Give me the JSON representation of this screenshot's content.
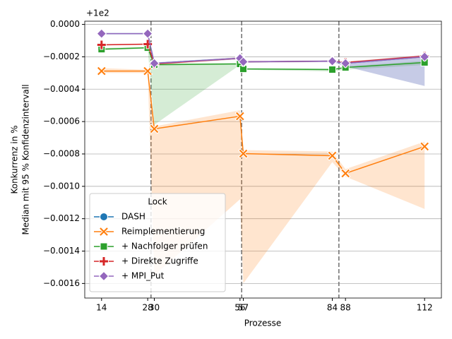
{
  "chart_data": {
    "type": "line",
    "xlabel": "Prozesse",
    "ylabel": [
      "Konkurrenz in %",
      "Median mit 95 % Konfidenzintervall"
    ],
    "y_offset_label": "+1e2",
    "x": [
      14,
      28,
      30,
      56,
      57,
      84,
      88,
      112
    ],
    "xlim": [
      8.9,
      117.1
    ],
    "xticks": [
      14,
      28,
      30,
      56,
      57,
      84,
      88,
      112
    ],
    "ylim": [
      -0.00169,
      2e-05
    ],
    "yticks": [
      {
        "value": 0,
        "label": "0.0000"
      },
      {
        "value": -0.0002,
        "label": "−0.0002"
      },
      {
        "value": -0.0004,
        "label": "−0.0004"
      },
      {
        "value": -0.0006,
        "label": "−0.0006"
      },
      {
        "value": -0.0008,
        "label": "−0.0008"
      },
      {
        "value": -0.001,
        "label": "−0.0010"
      },
      {
        "value": -0.0012,
        "label": "−0.0012"
      },
      {
        "value": -0.0014,
        "label": "−0.0014"
      },
      {
        "value": -0.0016,
        "label": "−0.0016"
      }
    ],
    "grid": "y",
    "vlines": [
      29,
      56.5,
      86
    ],
    "legend_title": "Lock",
    "legend_position": "lower left",
    "series": [
      {
        "name": "DASH",
        "color": "#1f77b4",
        "marker": "circle",
        "values": [
          -5.7e-05,
          -5.7e-05,
          -0.00024,
          -0.000209,
          -0.000231,
          -0.000227,
          -0.00024,
          -0.0002
        ],
        "lower": [
          -6e-05,
          -6e-05,
          -0.000245,
          -0.000215,
          -0.000236,
          -0.000232,
          -0.00026,
          -0.00038
        ],
        "upper": [
          -5.4e-05,
          -5.4e-05,
          -0.000235,
          -0.000203,
          -0.000226,
          -0.000222,
          -0.000232,
          -0.00019
        ]
      },
      {
        "name": "Reimplementierung",
        "color": "#ff7f0e",
        "marker": "x",
        "values": [
          -0.000288,
          -0.000288,
          -0.000645,
          -0.000567,
          -0.000798,
          -0.000811,
          -0.00092,
          -0.000754
        ],
        "lower": [
          -0.0003,
          -0.0003,
          -0.00155,
          -0.00108,
          -0.0016,
          -0.00085,
          -0.00094,
          -0.00114
        ],
        "upper": [
          -0.00027,
          -0.00028,
          -0.00063,
          -0.00053,
          -0.000776,
          -0.000785,
          -0.000894,
          -0.000724
        ]
      },
      {
        "name": "+ Nachfolger prüfen",
        "color": "#2ca02c",
        "marker": "square",
        "values": [
          -0.000153,
          -0.000144,
          -0.000249,
          -0.000244,
          -0.000275,
          -0.000279,
          -0.000266,
          -0.000235
        ],
        "lower": [
          -0.00016,
          -0.00015,
          -0.00062,
          -0.00025,
          -0.00028,
          -0.00029,
          -0.00028,
          -0.00025
        ],
        "upper": [
          -0.000146,
          -0.000138,
          -0.00024,
          -0.000238,
          -0.00027,
          -0.000272,
          -0.00026,
          -0.000225
        ]
      },
      {
        "name": "+ Direkte Zugriffe",
        "color": "#d62728",
        "marker": "plus",
        "values": [
          -0.000126,
          -0.000122,
          -0.000244,
          -0.000209,
          -0.000231,
          -0.000227,
          -0.000235,
          -0.000196
        ],
        "lower": [
          -0.00013,
          -0.000126,
          -0.00025,
          -0.000215,
          -0.000236,
          -0.000232,
          -0.00024,
          -0.000205
        ],
        "upper": [
          -0.000122,
          -0.000118,
          -0.000238,
          -0.000203,
          -0.000226,
          -0.000222,
          -0.00023,
          -0.000188
        ]
      },
      {
        "name": "+ MPI_Put",
        "color": "#9467bd",
        "marker": "diamond",
        "values": [
          -5.7e-05,
          -5.7e-05,
          -0.00024,
          -0.000209,
          -0.000231,
          -0.000227,
          -0.00024,
          -0.0002
        ],
        "lower": [
          -6e-05,
          -6e-05,
          -0.000245,
          -0.000215,
          -0.000236,
          -0.000232,
          -0.00026,
          -0.00038
        ],
        "upper": [
          -5.4e-05,
          -5.4e-05,
          -0.000235,
          -0.000203,
          -0.000226,
          -0.000222,
          -0.000232,
          -0.00019
        ]
      }
    ]
  }
}
